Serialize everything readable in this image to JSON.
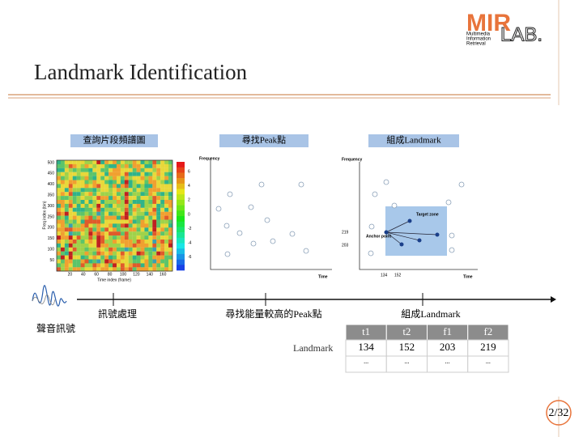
{
  "logo": {
    "mark": "MIR",
    "lab": "LAB.",
    "lines": [
      "Multimedia",
      "Information",
      "Retrieval"
    ]
  },
  "title": "Landmark Identification",
  "panels": [
    {
      "label": "查詢片段頻譜圖"
    },
    {
      "label": "尋找Peak點"
    },
    {
      "label": "組成Landmark"
    }
  ],
  "spectrogram": {
    "ylabel": "Freq index (bin)",
    "xlabel": "Time index (frame)",
    "yticks": [
      500,
      450,
      400,
      350,
      300,
      250,
      200,
      150,
      100,
      50
    ],
    "xticks": [
      20,
      40,
      60,
      80,
      100,
      120,
      140,
      160
    ],
    "colorbar": [
      6,
      4,
      2,
      0,
      -2,
      -4,
      -6
    ]
  },
  "peaks": {
    "ylabel": "Frequency",
    "xlabel": "Time"
  },
  "landmark_plot": {
    "ylabel": "Frequency",
    "xlabel": "Time",
    "target": "Target zone",
    "anchor": "Anchor point",
    "yticks": [
      219,
      203
    ],
    "xticks": [
      134,
      152
    ]
  },
  "timeline": {
    "source": "聲音訊號",
    "steps": [
      "訊號處理",
      "尋找能量較高的Peak點",
      "組成Landmark"
    ]
  },
  "table": {
    "row_label": "Landmark",
    "header": [
      "t1",
      "t2",
      "f1",
      "f2"
    ],
    "rows": [
      [
        134,
        152,
        203,
        219
      ],
      [
        "...",
        "...",
        "...",
        "..."
      ]
    ]
  },
  "page": "2/32"
}
